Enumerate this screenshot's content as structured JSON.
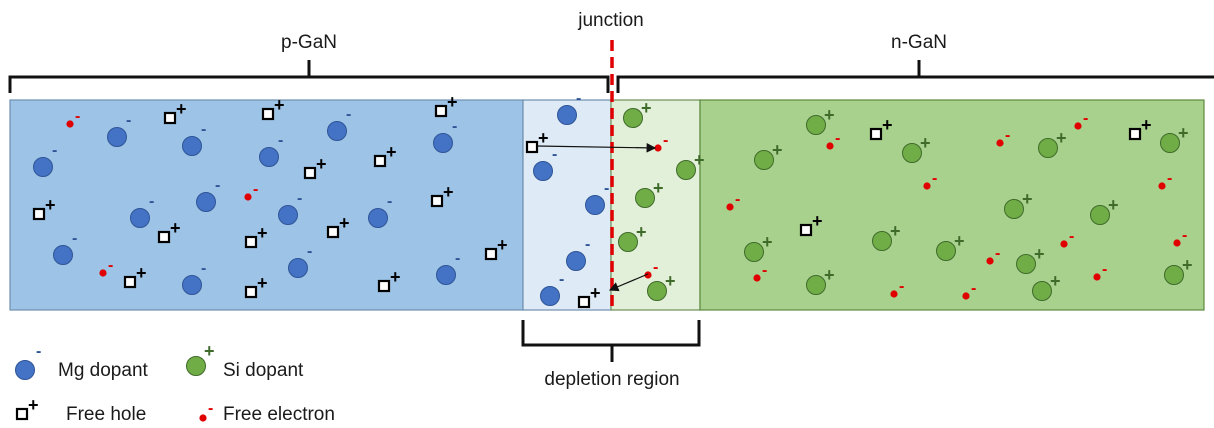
{
  "labels": {
    "p_region": "p-GaN",
    "n_region": "n-GaN",
    "junction": "junction",
    "depletion": "depletion region"
  },
  "legend": {
    "mg_dopant": "Mg dopant",
    "si_dopant": "Si dopant",
    "free_hole": "Free hole",
    "free_electron": "Free electron"
  },
  "colors": {
    "p_fill": "#9dc3e6",
    "p_depletion_fill": "#deebf7",
    "n_depletion_fill": "#e2f0d9",
    "n_fill": "#a9d18e",
    "mg_dopant": "#4472c4",
    "si_dopant": "#70ad47",
    "free_electron": "#e00000",
    "junction_line": "#e00000"
  },
  "symbols": {
    "minus": "-",
    "plus": "+"
  }
}
